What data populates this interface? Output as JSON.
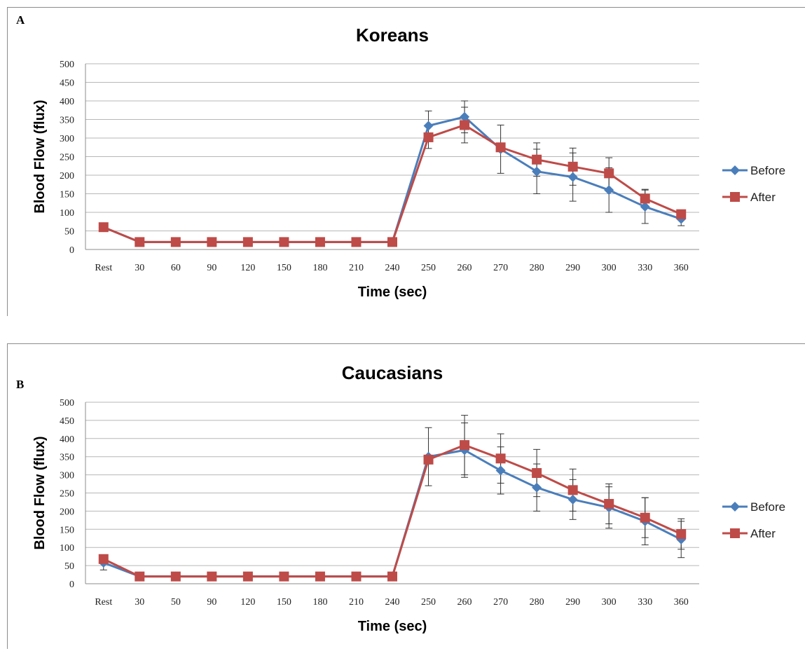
{
  "chart_data": [
    {
      "panel": "A",
      "type": "line",
      "title": "Koreans",
      "xlabel": "Time (sec)",
      "ylabel": "Blood Flow (flux)",
      "ylim": [
        0,
        500
      ],
      "yticks": [
        0,
        50,
        100,
        150,
        200,
        250,
        300,
        350,
        400,
        450,
        500
      ],
      "categories": [
        "Rest",
        "30",
        "60",
        "90",
        "120",
        "150",
        "180",
        "210",
        "240",
        "250",
        "260",
        "270",
        "280",
        "290",
        "300",
        "330",
        "360"
      ],
      "grid": "horizontal",
      "legend": "right",
      "series": [
        {
          "name": "Before",
          "color": "#4a7ebb",
          "marker": "diamond",
          "values": [
            60,
            20,
            20,
            20,
            20,
            20,
            20,
            20,
            20,
            333,
            357,
            270,
            210,
            195,
            160,
            115,
            82
          ],
          "error": [
            0,
            0,
            0,
            0,
            0,
            0,
            0,
            0,
            0,
            40,
            43,
            65,
            60,
            65,
            60,
            45,
            18
          ]
        },
        {
          "name": "After",
          "color": "#be4b48",
          "marker": "square",
          "values": [
            60,
            20,
            20,
            20,
            20,
            20,
            20,
            20,
            20,
            302,
            335,
            275,
            242,
            223,
            205,
            137,
            95
          ],
          "error": [
            0,
            0,
            0,
            0,
            0,
            0,
            0,
            0,
            0,
            30,
            48,
            0,
            45,
            50,
            42,
            25,
            0
          ]
        }
      ]
    },
    {
      "panel": "B",
      "type": "line",
      "title": "Caucasians",
      "xlabel": "Time (sec)",
      "ylabel": "Blood Flow (flux)",
      "ylim": [
        0,
        500
      ],
      "yticks": [
        0,
        50,
        100,
        150,
        200,
        250,
        300,
        350,
        400,
        450,
        500
      ],
      "categories": [
        "Rest",
        "30",
        "50",
        "90",
        "120",
        "150",
        "180",
        "210",
        "240",
        "250",
        "260",
        "270",
        "280",
        "290",
        "300",
        "330",
        "360"
      ],
      "grid": "horizontal",
      "legend": "right",
      "series": [
        {
          "name": "Before",
          "color": "#4a7ebb",
          "marker": "diamond",
          "values": [
            58,
            20,
            20,
            20,
            20,
            20,
            20,
            20,
            20,
            350,
            368,
            312,
            265,
            232,
            210,
            172,
            122
          ],
          "error": [
            20,
            0,
            0,
            0,
            0,
            0,
            0,
            0,
            0,
            80,
            75,
            65,
            65,
            55,
            57,
            65,
            50
          ]
        },
        {
          "name": "After",
          "color": "#be4b48",
          "marker": "square",
          "values": [
            68,
            20,
            20,
            20,
            20,
            20,
            20,
            20,
            20,
            342,
            382,
            345,
            305,
            258,
            220,
            182,
            137
          ],
          "error": [
            0,
            0,
            0,
            0,
            0,
            0,
            0,
            0,
            0,
            0,
            82,
            68,
            65,
            58,
            55,
            55,
            42
          ]
        }
      ]
    }
  ]
}
